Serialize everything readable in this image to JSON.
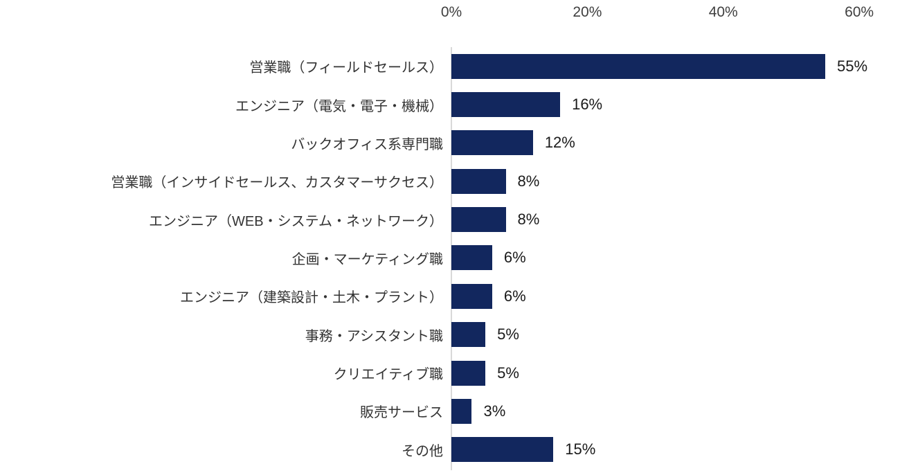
{
  "chart_data": {
    "type": "bar",
    "orientation": "horizontal",
    "title": "",
    "xlabel": "",
    "ylabel": "",
    "categories": [
      "営業職（フィールドセールス）",
      "エンジニア（電気・電子・機械）",
      "バックオフィス系専門職",
      "営業職（インサイドセールス、カスタマーサクセス）",
      "エンジニア（WEB・システム・ネットワーク）",
      "企画・マーケティング職",
      "エンジニア（建築設計・土木・プラント）",
      "事務・アシスタント職",
      "クリエイティブ職",
      "販売サービス",
      "その他"
    ],
    "values": [
      55,
      16,
      12,
      8,
      8,
      6,
      6,
      5,
      5,
      3,
      15
    ],
    "value_labels": [
      "55%",
      "16%",
      "12%",
      "8%",
      "8%",
      "6%",
      "6%",
      "5%",
      "5%",
      "3%",
      "15%"
    ],
    "x_axis": {
      "position": "top",
      "tick_labels": [
        "0%",
        "20%",
        "40%",
        "60%"
      ],
      "tick_values": [
        0,
        20,
        40,
        60
      ],
      "axis_max": 66,
      "grid": false
    },
    "legend": null
  },
  "colors": {
    "bar": "#12275e",
    "axis_line": "#d9d9d9",
    "tick_text": "#3f3f3f",
    "category_text": "#333333",
    "value_text": "#1a1a1a",
    "background": "#ffffff"
  }
}
